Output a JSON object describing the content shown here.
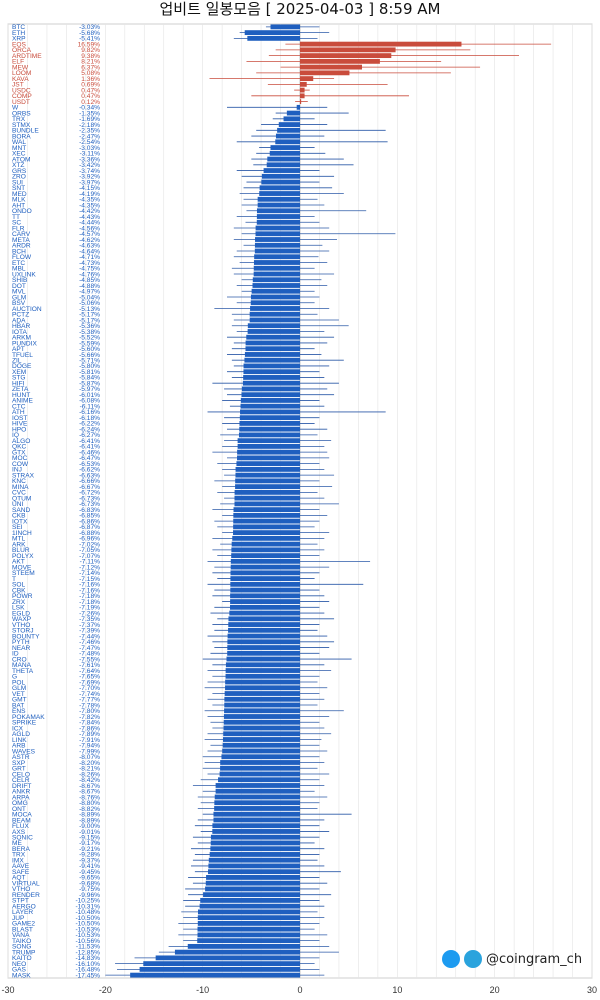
{
  "chart_data": {
    "type": "bar",
    "orientation": "horizontal",
    "title": "업비트 일봉모음 [ 2025-04-03 ] 8:59 AM",
    "xlim": [
      -30,
      30
    ],
    "xticks": [
      -30,
      -20,
      -10,
      0,
      10,
      20,
      30
    ],
    "colors": {
      "up": "#c94c3c",
      "down": "#1f5fbf",
      "range": "#2c5aa8",
      "grid": "#e4e4e4"
    },
    "coins": [
      {
        "name": "BTC",
        "change": -3.03,
        "low": -3.5,
        "high": 2.0
      },
      {
        "name": "ETH",
        "change": -5.68,
        "low": -6.2,
        "high": 3.0
      },
      {
        "name": "XRP",
        "change": -5.41,
        "low": -6.8,
        "high": 1.8
      },
      {
        "name": "EOS",
        "change": 16.59,
        "low": -1.5,
        "high": 25.8
      },
      {
        "name": "ORCA",
        "change": 9.82,
        "low": -2.5,
        "high": 17.5
      },
      {
        "name": "ARDTIME",
        "change": 9.38,
        "low": -3.2,
        "high": 22.5
      },
      {
        "name": "ELF",
        "change": 8.21,
        "low": -5.5,
        "high": 14.5
      },
      {
        "name": "MEW",
        "change": 6.37,
        "low": -2.0,
        "high": 18.5
      },
      {
        "name": "LOOM",
        "change": 5.08,
        "low": -4.5,
        "high": 15.5
      },
      {
        "name": "KAVA",
        "change": 1.36,
        "low": -9.3,
        "high": 3.5
      },
      {
        "name": "JST",
        "change": 0.69,
        "low": -3.3,
        "high": 9.0
      },
      {
        "name": "USDC",
        "change": 0.47,
        "low": -0.6,
        "high": 1.0
      },
      {
        "name": "COMP",
        "change": 0.47,
        "low": -5.0,
        "high": 11.2
      },
      {
        "name": "USDT",
        "change": 0.12,
        "low": -0.5,
        "high": 0.8
      },
      {
        "name": "W",
        "change": -0.34,
        "low": -7.5,
        "high": 2.8
      },
      {
        "name": "ORBS",
        "change": -1.35,
        "low": -2.5,
        "high": 5.0
      },
      {
        "name": "TRX",
        "change": -1.69,
        "low": -2.8,
        "high": 1.5
      },
      {
        "name": "STMX",
        "change": -2.18,
        "low": -4.0,
        "high": 2.8
      },
      {
        "name": "BUNDLE",
        "change": -2.35,
        "low": -4.5,
        "high": 8.8
      },
      {
        "name": "BORA",
        "change": -2.47,
        "low": -5.0,
        "high": 2.5
      },
      {
        "name": "WAL",
        "change": -2.54,
        "low": -6.5,
        "high": 9.0
      },
      {
        "name": "MNT",
        "change": -3.03,
        "low": -4.2,
        "high": 1.5
      },
      {
        "name": "XEC",
        "change": -3.11,
        "low": -4.5,
        "high": 2.6
      },
      {
        "name": "ATOM",
        "change": -3.36,
        "low": -5.0,
        "high": 4.5
      },
      {
        "name": "XTZ",
        "change": -3.42,
        "low": -4.8,
        "high": 5.5
      },
      {
        "name": "GRS",
        "change": -3.74,
        "low": -6.5,
        "high": 2.0
      },
      {
        "name": "ZRO",
        "change": -3.92,
        "low": -6.0,
        "high": 3.5
      },
      {
        "name": "SUI",
        "change": -3.97,
        "low": -5.5,
        "high": 2.0
      },
      {
        "name": "SNT",
        "change": -4.15,
        "low": -5.8,
        "high": 3.3
      },
      {
        "name": "MED",
        "change": -4.19,
        "low": -6.2,
        "high": 4.5
      },
      {
        "name": "MLK",
        "change": -4.35,
        "low": -5.8,
        "high": 1.8
      },
      {
        "name": "AHT",
        "change": -4.35,
        "low": -6.0,
        "high": 2.5
      },
      {
        "name": "ONDO",
        "change": -4.42,
        "low": -5.5,
        "high": 6.8
      },
      {
        "name": "TT",
        "change": -4.43,
        "low": -6.5,
        "high": 1.5
      },
      {
        "name": "SC",
        "change": -4.44,
        "low": -5.6,
        "high": 2.0
      },
      {
        "name": "FLR",
        "change": -4.56,
        "low": -6.8,
        "high": 3.0
      },
      {
        "name": "CARV",
        "change": -4.57,
        "low": -6.0,
        "high": 9.8
      },
      {
        "name": "META",
        "change": -4.62,
        "low": -6.8,
        "high": 3.8
      },
      {
        "name": "ARDR",
        "change": -4.63,
        "low": -5.8,
        "high": 2.3
      },
      {
        "name": "BCH",
        "change": -4.64,
        "low": -6.5,
        "high": 3.0
      },
      {
        "name": "FLOW",
        "change": -4.71,
        "low": -6.8,
        "high": 1.9
      },
      {
        "name": "ETC",
        "change": -4.73,
        "low": -6.2,
        "high": 2.8
      },
      {
        "name": "MBL",
        "change": -4.75,
        "low": -7.0,
        "high": 1.5
      },
      {
        "name": "UXLINK",
        "change": -4.76,
        "low": -6.8,
        "high": 3.5
      },
      {
        "name": "SHIB",
        "change": -4.85,
        "low": -6.0,
        "high": 2.2
      },
      {
        "name": "DOT",
        "change": -4.88,
        "low": -6.5,
        "high": 2.8
      },
      {
        "name": "MVL",
        "change": -4.97,
        "low": -6.0,
        "high": 1.5
      },
      {
        "name": "GLM",
        "change": -5.04,
        "low": -7.5,
        "high": 2.0
      },
      {
        "name": "BSV",
        "change": -5.06,
        "low": -6.5,
        "high": 1.5
      },
      {
        "name": "AUCTION",
        "change": -5.13,
        "low": -8.8,
        "high": 3.0
      },
      {
        "name": "PCTZ",
        "change": -5.17,
        "low": -7.0,
        "high": 1.8
      },
      {
        "name": "ADA",
        "change": -5.17,
        "low": -6.8,
        "high": 4.0
      },
      {
        "name": "HBAR",
        "change": -5.36,
        "low": -7.0,
        "high": 5.0
      },
      {
        "name": "IOTA",
        "change": -5.38,
        "low": -6.5,
        "high": 2.5
      },
      {
        "name": "ARKM",
        "change": -5.52,
        "low": -7.5,
        "high": 3.5
      },
      {
        "name": "PUNDIX",
        "change": -5.59,
        "low": -6.8,
        "high": 2.8
      },
      {
        "name": "APT",
        "change": -5.6,
        "low": -7.0,
        "high": 1.5
      },
      {
        "name": "TFUEL",
        "change": -5.66,
        "low": -7.5,
        "high": 2.2
      },
      {
        "name": "ZIL",
        "change": -5.71,
        "low": -7.0,
        "high": 4.5
      },
      {
        "name": "DOGE",
        "change": -5.8,
        "low": -6.8,
        "high": 3.0
      },
      {
        "name": "XEM",
        "change": -5.81,
        "low": -7.5,
        "high": 2.0
      },
      {
        "name": "STG",
        "change": -5.84,
        "low": -7.0,
        "high": 2.5
      },
      {
        "name": "HIFI",
        "change": -5.87,
        "low": -9.0,
        "high": 4.0
      },
      {
        "name": "ZETA",
        "change": -5.97,
        "low": -7.8,
        "high": 2.8
      },
      {
        "name": "HUNT",
        "change": -6.01,
        "low": -7.5,
        "high": 3.5
      },
      {
        "name": "ANIME",
        "change": -6.08,
        "low": -8.0,
        "high": 2.0
      },
      {
        "name": "CTC",
        "change": -6.11,
        "low": -7.2,
        "high": 2.5
      },
      {
        "name": "ATH",
        "change": -6.16,
        "low": -9.5,
        "high": 8.8
      },
      {
        "name": "IOST",
        "change": -6.18,
        "low": -7.8,
        "high": 2.0
      },
      {
        "name": "HIVE",
        "change": -6.22,
        "low": -8.0,
        "high": 1.5
      },
      {
        "name": "HPO",
        "change": -6.24,
        "low": -7.5,
        "high": 2.8
      },
      {
        "name": "IQ",
        "change": -6.27,
        "low": -8.2,
        "high": 1.8
      },
      {
        "name": "ALGO",
        "change": -6.41,
        "low": -7.8,
        "high": 3.2
      },
      {
        "name": "QKC",
        "change": -6.41,
        "low": -8.0,
        "high": 2.5
      },
      {
        "name": "GTX",
        "change": -6.46,
        "low": -9.0,
        "high": 2.8
      },
      {
        "name": "MOC",
        "change": -6.47,
        "low": -7.5,
        "high": 3.0
      },
      {
        "name": "COW",
        "change": -6.53,
        "low": -8.5,
        "high": 2.0
      },
      {
        "name": "INJ",
        "change": -6.62,
        "low": -8.0,
        "high": 2.5
      },
      {
        "name": "STRAX",
        "change": -6.63,
        "low": -7.8,
        "high": 3.5
      },
      {
        "name": "KNC",
        "change": -6.66,
        "low": -8.8,
        "high": 2.0
      },
      {
        "name": "MINA",
        "change": -6.67,
        "low": -8.0,
        "high": 3.3
      },
      {
        "name": "CVC",
        "change": -6.72,
        "low": -8.5,
        "high": 1.8
      },
      {
        "name": "QTUM",
        "change": -6.73,
        "low": -7.8,
        "high": 2.5
      },
      {
        "name": "UNI",
        "change": -6.73,
        "low": -8.2,
        "high": 4.0
      },
      {
        "name": "SAND",
        "change": -6.83,
        "low": -9.0,
        "high": 2.0
      },
      {
        "name": "CKB",
        "change": -6.85,
        "low": -8.0,
        "high": 2.8
      },
      {
        "name": "IOTX",
        "change": -6.86,
        "low": -8.8,
        "high": 2.0
      },
      {
        "name": "SEI",
        "change": -6.87,
        "low": -8.5,
        "high": 1.5
      },
      {
        "name": "1INCH",
        "change": -6.88,
        "low": -8.0,
        "high": 3.0
      },
      {
        "name": "MTL",
        "change": -6.96,
        "low": -9.0,
        "high": 2.5
      },
      {
        "name": "ARK",
        "change": -7.02,
        "low": -8.2,
        "high": 1.8
      },
      {
        "name": "BLUR",
        "change": -7.05,
        "low": -9.0,
        "high": 2.5
      },
      {
        "name": "POLYX",
        "change": -7.07,
        "low": -8.5,
        "high": 2.0
      },
      {
        "name": "AKT",
        "change": -7.11,
        "low": -9.5,
        "high": 7.2
      },
      {
        "name": "MOVE",
        "change": -7.12,
        "low": -8.8,
        "high": 3.0
      },
      {
        "name": "STEEM",
        "change": -7.14,
        "low": -9.0,
        "high": 2.0
      },
      {
        "name": "T",
        "change": -7.15,
        "low": -8.5,
        "high": 1.5
      },
      {
        "name": "SOL",
        "change": -7.16,
        "low": -9.5,
        "high": 6.5
      },
      {
        "name": "CBK",
        "change": -7.16,
        "low": -8.8,
        "high": 2.0
      },
      {
        "name": "POWR",
        "change": -7.18,
        "low": -9.0,
        "high": 2.5
      },
      {
        "name": "ZRX",
        "change": -7.18,
        "low": -8.0,
        "high": 3.0
      },
      {
        "name": "LSK",
        "change": -7.19,
        "low": -8.8,
        "high": 2.0
      },
      {
        "name": "EGLD",
        "change": -7.26,
        "low": -9.2,
        "high": 2.5
      },
      {
        "name": "WAXP",
        "change": -7.35,
        "low": -8.5,
        "high": 3.5
      },
      {
        "name": "VTHO",
        "change": -7.37,
        "low": -9.0,
        "high": 2.0
      },
      {
        "name": "STORJ",
        "change": -7.39,
        "low": -8.8,
        "high": 1.8
      },
      {
        "name": "BOUNTY",
        "change": -7.44,
        "low": -9.5,
        "high": 2.8
      },
      {
        "name": "PYTH",
        "change": -7.46,
        "low": -9.0,
        "high": 3.5
      },
      {
        "name": "NEAR",
        "change": -7.47,
        "low": -8.8,
        "high": 3.0
      },
      {
        "name": "ID",
        "change": -7.48,
        "low": -9.2,
        "high": 2.0
      },
      {
        "name": "CRO",
        "change": -7.55,
        "low": -10.0,
        "high": 5.3
      },
      {
        "name": "MANA",
        "change": -7.61,
        "low": -9.0,
        "high": 2.5
      },
      {
        "name": "THETA",
        "change": -7.64,
        "low": -9.5,
        "high": 3.2
      },
      {
        "name": "G",
        "change": -7.65,
        "low": -9.0,
        "high": 2.0
      },
      {
        "name": "POL",
        "change": -7.69,
        "low": -9.5,
        "high": 1.8
      },
      {
        "name": "GLM",
        "change": -7.7,
        "low": -9.8,
        "high": 2.8
      },
      {
        "name": "VET",
        "change": -7.74,
        "low": -9.0,
        "high": 2.0
      },
      {
        "name": "GMT",
        "change": -7.77,
        "low": -9.5,
        "high": 2.5
      },
      {
        "name": "BAT",
        "change": -7.78,
        "low": -9.0,
        "high": 1.8
      },
      {
        "name": "ENS",
        "change": -7.8,
        "low": -9.8,
        "high": 4.5
      },
      {
        "name": "POKAMAK",
        "change": -7.82,
        "low": -9.5,
        "high": 3.0
      },
      {
        "name": "SPRIKE",
        "change": -7.84,
        "low": -9.2,
        "high": 2.0
      },
      {
        "name": "ICX",
        "change": -7.86,
        "low": -9.0,
        "high": 2.5
      },
      {
        "name": "AGLD",
        "change": -7.89,
        "low": -9.5,
        "high": 3.2
      },
      {
        "name": "LINK",
        "change": -7.91,
        "low": -9.8,
        "high": 2.2
      },
      {
        "name": "ARB",
        "change": -7.94,
        "low": -9.2,
        "high": 2.0
      },
      {
        "name": "WAVES",
        "change": -7.99,
        "low": -9.5,
        "high": 2.8
      },
      {
        "name": "ASTR",
        "change": -8.07,
        "low": -10.0,
        "high": 2.0
      },
      {
        "name": "SXP",
        "change": -8.2,
        "low": -9.8,
        "high": 2.5
      },
      {
        "name": "GRT",
        "change": -8.21,
        "low": -10.0,
        "high": 1.8
      },
      {
        "name": "CELO",
        "change": -8.26,
        "low": -9.5,
        "high": 3.0
      },
      {
        "name": "CELR",
        "change": -8.42,
        "low": -10.2,
        "high": 2.0
      },
      {
        "name": "DRIFT",
        "change": -8.67,
        "low": -11.0,
        "high": 2.5
      },
      {
        "name": "ANKR",
        "change": -8.67,
        "low": -10.0,
        "high": 1.5
      },
      {
        "name": "ARPA",
        "change": -8.76,
        "low": -10.5,
        "high": 2.8
      },
      {
        "name": "OMG",
        "change": -8.8,
        "low": -10.2,
        "high": 2.0
      },
      {
        "name": "ONT",
        "change": -8.82,
        "low": -10.5,
        "high": 1.8
      },
      {
        "name": "MOCA",
        "change": -8.89,
        "low": -10.0,
        "high": 5.3
      },
      {
        "name": "BEAM",
        "change": -8.89,
        "low": -10.5,
        "high": 2.5
      },
      {
        "name": "FLUX",
        "change": -9.0,
        "low": -10.8,
        "high": 2.0
      },
      {
        "name": "AXS",
        "change": -9.01,
        "low": -10.2,
        "high": 3.0
      },
      {
        "name": "SONIC",
        "change": -9.15,
        "low": -11.0,
        "high": 2.0
      },
      {
        "name": "ME",
        "change": -9.17,
        "low": -10.5,
        "high": 1.5
      },
      {
        "name": "BERA",
        "change": -9.21,
        "low": -11.2,
        "high": 2.5
      },
      {
        "name": "TRX",
        "change": -9.28,
        "low": -10.8,
        "high": 2.0
      },
      {
        "name": "IMX",
        "change": -9.37,
        "low": -11.0,
        "high": 1.8
      },
      {
        "name": "AAVE",
        "change": -9.41,
        "low": -11.2,
        "high": 2.5
      },
      {
        "name": "SAFE",
        "change": -9.45,
        "low": -10.8,
        "high": 4.2
      },
      {
        "name": "AQT",
        "change": -9.65,
        "low": -11.5,
        "high": 2.0
      },
      {
        "name": "VIRTUAL",
        "change": -9.68,
        "low": -11.0,
        "high": 2.8
      },
      {
        "name": "VTHO",
        "change": -9.75,
        "low": -11.8,
        "high": 2.0
      },
      {
        "name": "RENDER",
        "change": -9.96,
        "low": -11.5,
        "high": 3.2
      },
      {
        "name": "STPT",
        "change": -10.25,
        "low": -12.0,
        "high": 2.0
      },
      {
        "name": "AERGO",
        "change": -10.31,
        "low": -11.8,
        "high": 2.5
      },
      {
        "name": "LAYER",
        "change": -10.48,
        "low": -12.2,
        "high": 1.8
      },
      {
        "name": "JUP",
        "change": -10.5,
        "low": -12.0,
        "high": 2.5
      },
      {
        "name": "GAME2",
        "change": -10.5,
        "low": -12.5,
        "high": 2.0
      },
      {
        "name": "BLAST",
        "change": -10.53,
        "low": -12.0,
        "high": 1.5
      },
      {
        "name": "VANA",
        "change": -10.53,
        "low": -12.5,
        "high": 2.8
      },
      {
        "name": "TAIKO",
        "change": -10.56,
        "low": -12.0,
        "high": 2.0
      },
      {
        "name": "SONG",
        "change": -11.53,
        "low": -13.5,
        "high": 3.0
      },
      {
        "name": "TRUMP",
        "change": -12.85,
        "low": -14.5,
        "high": 4.0
      },
      {
        "name": "KAITO",
        "change": -14.83,
        "low": -17.0,
        "high": 2.0
      },
      {
        "name": "NEO",
        "change": -16.1,
        "low": -19.0,
        "high": 1.5
      },
      {
        "name": "GAS",
        "change": -16.48,
        "low": -18.8,
        "high": 2.0
      },
      {
        "name": "MASK",
        "change": -17.45,
        "low": -20.0,
        "high": 2.5
      }
    ]
  },
  "watermark": {
    "handle": "@coingram_ch",
    "icons": [
      "twitter-icon",
      "telegram-icon"
    ]
  }
}
